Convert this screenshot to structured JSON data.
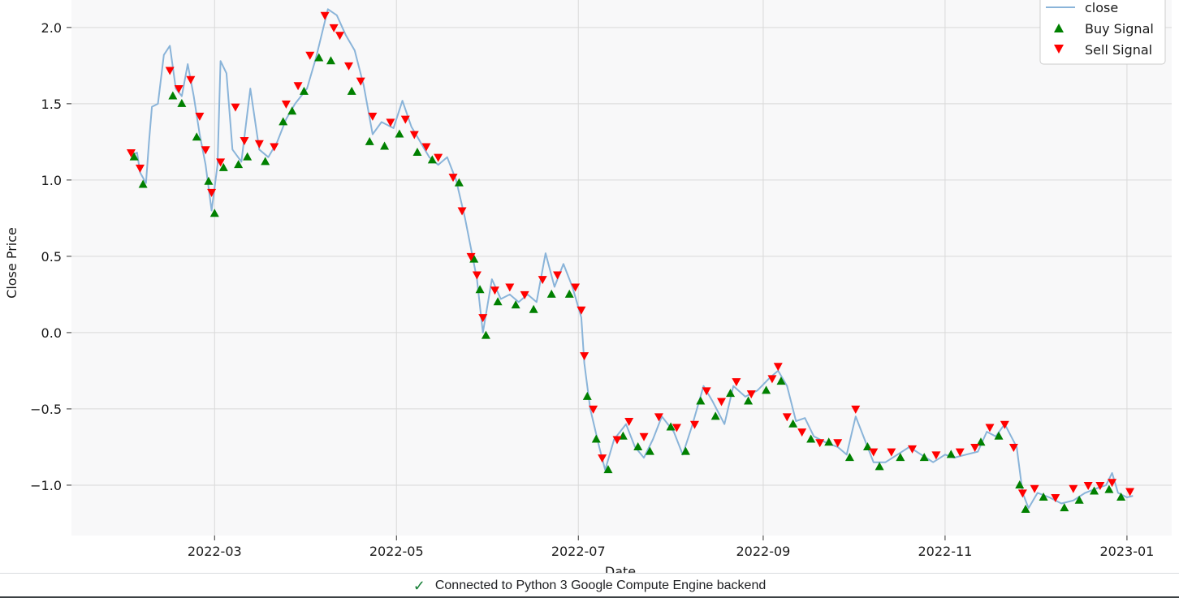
{
  "status": {
    "icon": "check-icon",
    "text": "Connected to Python 3 Google Compute Engine backend"
  },
  "colors": {
    "close_line": "#8ab4d9",
    "buy": "#008000",
    "sell": "#ff0000",
    "plot_bg": "#f8f8f9",
    "grid": "#d9d9d9",
    "status_ok": "#188038"
  },
  "chart_data": {
    "type": "line",
    "xlabel": "Date",
    "ylabel": "Close Price",
    "grid": true,
    "legend_position": "top-right",
    "x_ticks": [
      "2022-03",
      "2022-05",
      "2022-07",
      "2022-09",
      "2022-11",
      "2023-01"
    ],
    "y_ticks": [
      "−1.0",
      "−0.5",
      "0.0",
      "0.5",
      "1.0",
      "1.5",
      "2.0"
    ],
    "xlim": [
      "2022-01-12",
      "2023-01-16"
    ],
    "ylim": [
      -1.33,
      2.18
    ],
    "series": [
      {
        "name": "close",
        "style": "line",
        "points": [
          [
            "2022-02-01",
            1.16
          ],
          [
            "2022-02-03",
            1.18
          ],
          [
            "2022-02-04",
            1.05
          ],
          [
            "2022-02-06",
            0.98
          ],
          [
            "2022-02-07",
            1.25
          ],
          [
            "2022-02-08",
            1.48
          ],
          [
            "2022-02-10",
            1.5
          ],
          [
            "2022-02-12",
            1.82
          ],
          [
            "2022-02-14",
            1.88
          ],
          [
            "2022-02-16",
            1.6
          ],
          [
            "2022-02-18",
            1.55
          ],
          [
            "2022-02-20",
            1.76
          ],
          [
            "2022-02-22",
            1.55
          ],
          [
            "2022-02-24",
            1.3
          ],
          [
            "2022-02-26",
            1.1
          ],
          [
            "2022-02-28",
            0.8
          ],
          [
            "2022-03-02",
            1.1
          ],
          [
            "2022-03-03",
            1.78
          ],
          [
            "2022-03-05",
            1.7
          ],
          [
            "2022-03-07",
            1.2
          ],
          [
            "2022-03-10",
            1.12
          ],
          [
            "2022-03-13",
            1.6
          ],
          [
            "2022-03-16",
            1.2
          ],
          [
            "2022-03-19",
            1.15
          ],
          [
            "2022-03-22",
            1.25
          ],
          [
            "2022-03-25",
            1.4
          ],
          [
            "2022-03-28",
            1.5
          ],
          [
            "2022-04-01",
            1.6
          ],
          [
            "2022-04-04",
            1.8
          ],
          [
            "2022-04-08",
            2.12
          ],
          [
            "2022-04-11",
            2.08
          ],
          [
            "2022-04-14",
            1.95
          ],
          [
            "2022-04-17",
            1.85
          ],
          [
            "2022-04-20",
            1.62
          ],
          [
            "2022-04-23",
            1.3
          ],
          [
            "2022-04-26",
            1.38
          ],
          [
            "2022-04-30",
            1.34
          ],
          [
            "2022-05-03",
            1.52
          ],
          [
            "2022-05-06",
            1.35
          ],
          [
            "2022-05-09",
            1.25
          ],
          [
            "2022-05-12",
            1.15
          ],
          [
            "2022-05-15",
            1.1
          ],
          [
            "2022-05-18",
            1.15
          ],
          [
            "2022-05-21",
            1.0
          ],
          [
            "2022-05-24",
            0.75
          ],
          [
            "2022-05-26",
            0.55
          ],
          [
            "2022-05-28",
            0.35
          ],
          [
            "2022-05-30",
            0.0
          ],
          [
            "2022-06-02",
            0.35
          ],
          [
            "2022-06-05",
            0.22
          ],
          [
            "2022-06-08",
            0.25
          ],
          [
            "2022-06-11",
            0.2
          ],
          [
            "2022-06-14",
            0.25
          ],
          [
            "2022-06-17",
            0.2
          ],
          [
            "2022-06-20",
            0.52
          ],
          [
            "2022-06-23",
            0.3
          ],
          [
            "2022-06-26",
            0.45
          ],
          [
            "2022-06-29",
            0.3
          ],
          [
            "2022-07-02",
            0.1
          ],
          [
            "2022-07-03",
            -0.2
          ],
          [
            "2022-07-05",
            -0.5
          ],
          [
            "2022-07-08",
            -0.75
          ],
          [
            "2022-07-10",
            -0.9
          ],
          [
            "2022-07-13",
            -0.7
          ],
          [
            "2022-07-17",
            -0.6
          ],
          [
            "2022-07-20",
            -0.75
          ],
          [
            "2022-07-23",
            -0.82
          ],
          [
            "2022-07-26",
            -0.7
          ],
          [
            "2022-07-29",
            -0.55
          ],
          [
            "2022-08-02",
            -0.65
          ],
          [
            "2022-08-05",
            -0.8
          ],
          [
            "2022-08-08",
            -0.62
          ],
          [
            "2022-08-12",
            -0.35
          ],
          [
            "2022-08-15",
            -0.45
          ],
          [
            "2022-08-19",
            -0.6
          ],
          [
            "2022-08-22",
            -0.35
          ],
          [
            "2022-08-26",
            -0.42
          ],
          [
            "2022-08-30",
            -0.38
          ],
          [
            "2022-09-03",
            -0.3
          ],
          [
            "2022-09-06",
            -0.25
          ],
          [
            "2022-09-09",
            -0.35
          ],
          [
            "2022-09-12",
            -0.58
          ],
          [
            "2022-09-15",
            -0.56
          ],
          [
            "2022-09-18",
            -0.68
          ],
          [
            "2022-09-22",
            -0.72
          ],
          [
            "2022-09-26",
            -0.75
          ],
          [
            "2022-09-29",
            -0.8
          ],
          [
            "2022-10-02",
            -0.55
          ],
          [
            "2022-10-05",
            -0.7
          ],
          [
            "2022-10-08",
            -0.85
          ],
          [
            "2022-10-12",
            -0.85
          ],
          [
            "2022-10-16",
            -0.8
          ],
          [
            "2022-10-20",
            -0.75
          ],
          [
            "2022-10-24",
            -0.8
          ],
          [
            "2022-10-28",
            -0.85
          ],
          [
            "2022-11-01",
            -0.8
          ],
          [
            "2022-11-04",
            -0.82
          ],
          [
            "2022-11-08",
            -0.8
          ],
          [
            "2022-11-12",
            -0.78
          ],
          [
            "2022-11-15",
            -0.65
          ],
          [
            "2022-11-18",
            -0.68
          ],
          [
            "2022-11-21",
            -0.6
          ],
          [
            "2022-11-25",
            -0.75
          ],
          [
            "2022-11-27",
            -1.05
          ],
          [
            "2022-11-29",
            -1.15
          ],
          [
            "2022-12-02",
            -1.05
          ],
          [
            "2022-12-06",
            -1.08
          ],
          [
            "2022-12-10",
            -1.12
          ],
          [
            "2022-12-14",
            -1.1
          ],
          [
            "2022-12-18",
            -1.05
          ],
          [
            "2022-12-22",
            -1.02
          ],
          [
            "2022-12-25",
            -1.0
          ],
          [
            "2022-12-27",
            -0.92
          ],
          [
            "2022-12-29",
            -1.05
          ],
          [
            "2023-01-01",
            -1.08
          ],
          [
            "2023-01-03",
            -1.07
          ]
        ]
      },
      {
        "name": "Buy Signal",
        "style": "marker-triangle-up",
        "points": [
          [
            "2022-02-02",
            1.15
          ],
          [
            "2022-02-05",
            0.97
          ],
          [
            "2022-02-15",
            1.55
          ],
          [
            "2022-02-18",
            1.5
          ],
          [
            "2022-02-23",
            1.28
          ],
          [
            "2022-02-27",
            0.99
          ],
          [
            "2022-03-01",
            0.78
          ],
          [
            "2022-03-04",
            1.08
          ],
          [
            "2022-03-09",
            1.1
          ],
          [
            "2022-03-12",
            1.15
          ],
          [
            "2022-03-18",
            1.12
          ],
          [
            "2022-03-24",
            1.38
          ],
          [
            "2022-03-27",
            1.45
          ],
          [
            "2022-03-31",
            1.58
          ],
          [
            "2022-04-05",
            1.8
          ],
          [
            "2022-04-09",
            1.78
          ],
          [
            "2022-04-16",
            1.58
          ],
          [
            "2022-04-22",
            1.25
          ],
          [
            "2022-04-27",
            1.22
          ],
          [
            "2022-05-02",
            1.3
          ],
          [
            "2022-05-08",
            1.18
          ],
          [
            "2022-05-13",
            1.13
          ],
          [
            "2022-05-22",
            0.98
          ],
          [
            "2022-05-27",
            0.48
          ],
          [
            "2022-05-29",
            0.28
          ],
          [
            "2022-05-31",
            -0.02
          ],
          [
            "2022-06-04",
            0.2
          ],
          [
            "2022-06-10",
            0.18
          ],
          [
            "2022-06-16",
            0.15
          ],
          [
            "2022-06-22",
            0.25
          ],
          [
            "2022-06-28",
            0.25
          ],
          [
            "2022-07-04",
            -0.42
          ],
          [
            "2022-07-07",
            -0.7
          ],
          [
            "2022-07-11",
            -0.9
          ],
          [
            "2022-07-16",
            -0.68
          ],
          [
            "2022-07-21",
            -0.75
          ],
          [
            "2022-07-25",
            -0.78
          ],
          [
            "2022-08-01",
            -0.62
          ],
          [
            "2022-08-06",
            -0.78
          ],
          [
            "2022-08-11",
            -0.45
          ],
          [
            "2022-08-16",
            -0.55
          ],
          [
            "2022-08-21",
            -0.4
          ],
          [
            "2022-08-27",
            -0.45
          ],
          [
            "2022-09-02",
            -0.38
          ],
          [
            "2022-09-07",
            -0.32
          ],
          [
            "2022-09-11",
            -0.6
          ],
          [
            "2022-09-17",
            -0.7
          ],
          [
            "2022-09-23",
            -0.72
          ],
          [
            "2022-09-30",
            -0.82
          ],
          [
            "2022-10-06",
            -0.75
          ],
          [
            "2022-10-10",
            -0.88
          ],
          [
            "2022-10-17",
            -0.82
          ],
          [
            "2022-10-25",
            -0.82
          ],
          [
            "2022-11-03",
            -0.8
          ],
          [
            "2022-11-13",
            -0.72
          ],
          [
            "2022-11-19",
            -0.68
          ],
          [
            "2022-11-26",
            -1.0
          ],
          [
            "2022-11-28",
            -1.16
          ],
          [
            "2022-12-04",
            -1.08
          ],
          [
            "2022-12-11",
            -1.15
          ],
          [
            "2022-12-16",
            -1.1
          ],
          [
            "2022-12-21",
            -1.04
          ],
          [
            "2022-12-26",
            -1.03
          ],
          [
            "2022-12-30",
            -1.08
          ]
        ]
      },
      {
        "name": "Sell Signal",
        "style": "marker-triangle-down",
        "points": [
          [
            "2022-02-01",
            1.18
          ],
          [
            "2022-02-04",
            1.08
          ],
          [
            "2022-02-14",
            1.72
          ],
          [
            "2022-02-17",
            1.6
          ],
          [
            "2022-02-21",
            1.66
          ],
          [
            "2022-02-24",
            1.42
          ],
          [
            "2022-02-26",
            1.2
          ],
          [
            "2022-02-28",
            0.92
          ],
          [
            "2022-03-03",
            1.12
          ],
          [
            "2022-03-08",
            1.48
          ],
          [
            "2022-03-11",
            1.26
          ],
          [
            "2022-03-16",
            1.24
          ],
          [
            "2022-03-21",
            1.22
          ],
          [
            "2022-03-25",
            1.5
          ],
          [
            "2022-03-29",
            1.62
          ],
          [
            "2022-04-02",
            1.82
          ],
          [
            "2022-04-07",
            2.08
          ],
          [
            "2022-04-10",
            2.0
          ],
          [
            "2022-04-12",
            1.95
          ],
          [
            "2022-04-15",
            1.75
          ],
          [
            "2022-04-19",
            1.65
          ],
          [
            "2022-04-23",
            1.42
          ],
          [
            "2022-04-29",
            1.38
          ],
          [
            "2022-05-04",
            1.4
          ],
          [
            "2022-05-07",
            1.3
          ],
          [
            "2022-05-11",
            1.22
          ],
          [
            "2022-05-15",
            1.15
          ],
          [
            "2022-05-20",
            1.02
          ],
          [
            "2022-05-23",
            0.8
          ],
          [
            "2022-05-26",
            0.5
          ],
          [
            "2022-05-28",
            0.38
          ],
          [
            "2022-05-30",
            0.1
          ],
          [
            "2022-06-03",
            0.28
          ],
          [
            "2022-06-08",
            0.3
          ],
          [
            "2022-06-13",
            0.25
          ],
          [
            "2022-06-19",
            0.35
          ],
          [
            "2022-06-24",
            0.38
          ],
          [
            "2022-06-30",
            0.3
          ],
          [
            "2022-07-02",
            0.15
          ],
          [
            "2022-07-03",
            -0.15
          ],
          [
            "2022-07-06",
            -0.5
          ],
          [
            "2022-07-09",
            -0.82
          ],
          [
            "2022-07-14",
            -0.7
          ],
          [
            "2022-07-18",
            -0.58
          ],
          [
            "2022-07-23",
            -0.68
          ],
          [
            "2022-07-28",
            -0.55
          ],
          [
            "2022-08-03",
            -0.62
          ],
          [
            "2022-08-09",
            -0.6
          ],
          [
            "2022-08-13",
            -0.38
          ],
          [
            "2022-08-18",
            -0.45
          ],
          [
            "2022-08-23",
            -0.32
          ],
          [
            "2022-08-28",
            -0.4
          ],
          [
            "2022-09-04",
            -0.3
          ],
          [
            "2022-09-06",
            -0.22
          ],
          [
            "2022-09-09",
            -0.55
          ],
          [
            "2022-09-14",
            -0.65
          ],
          [
            "2022-09-20",
            -0.72
          ],
          [
            "2022-09-26",
            -0.72
          ],
          [
            "2022-10-02",
            -0.5
          ],
          [
            "2022-10-08",
            -0.78
          ],
          [
            "2022-10-14",
            -0.78
          ],
          [
            "2022-10-21",
            -0.76
          ],
          [
            "2022-10-29",
            -0.8
          ],
          [
            "2022-11-06",
            -0.78
          ],
          [
            "2022-11-11",
            -0.75
          ],
          [
            "2022-11-16",
            -0.62
          ],
          [
            "2022-11-21",
            -0.6
          ],
          [
            "2022-11-24",
            -0.75
          ],
          [
            "2022-11-27",
            -1.05
          ],
          [
            "2022-12-01",
            -1.02
          ],
          [
            "2022-12-08",
            -1.08
          ],
          [
            "2022-12-14",
            -1.02
          ],
          [
            "2022-12-19",
            -1.0
          ],
          [
            "2022-12-23",
            -1.0
          ],
          [
            "2022-12-27",
            -0.98
          ],
          [
            "2023-01-02",
            -1.04
          ]
        ]
      }
    ]
  }
}
